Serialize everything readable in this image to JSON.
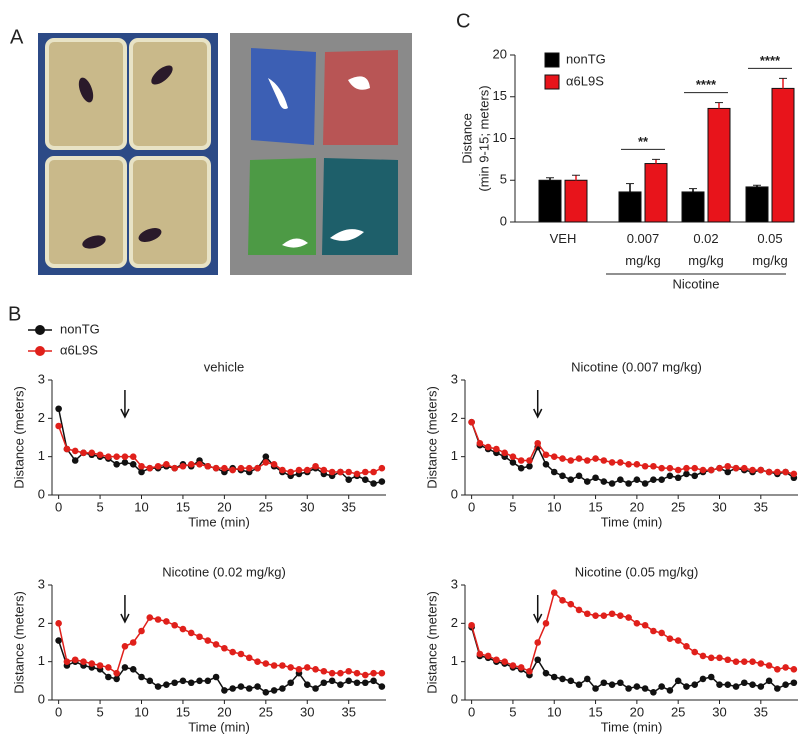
{
  "panel_labels": [
    "A",
    "B",
    "C"
  ],
  "legend_b": [
    {
      "name": "nonTG",
      "color": "#111111"
    },
    {
      "name": "α6L9S",
      "color": "#e0201b"
    }
  ],
  "chart_data": [
    {
      "type": "bar",
      "y_label": [
        "Distance",
        "(min 9-15; meters)"
      ],
      "categories": [
        "VEH",
        "0.007 mg/kg",
        "0.02 mg/kg",
        "0.05 mg/kg"
      ],
      "group_label": "Nicotine",
      "significance": [
        null,
        "**",
        "****",
        "****"
      ],
      "series": [
        {
          "name": "nonTG",
          "color": "#000000",
          "values": [
            5,
            3.6,
            3.6,
            4.2
          ],
          "errors": [
            0.3,
            1.0,
            0.4,
            0.2
          ]
        },
        {
          "name": "α6L9S",
          "color": "#e8141b",
          "values": [
            5,
            7,
            13.6,
            16
          ],
          "errors": [
            0.6,
            0.5,
            0.7,
            1.2
          ]
        }
      ],
      "ylim": [
        0,
        20
      ],
      "yticks": [
        0,
        5,
        10,
        15,
        20
      ]
    },
    {
      "type": "line",
      "title": "vehicle",
      "x_label": "Time (min)",
      "y_label": "Distance (meters)",
      "arrow_at": 8,
      "xlim": [
        -0.8,
        39.5
      ],
      "xticks": [
        0,
        5,
        10,
        15,
        20,
        25,
        30,
        35
      ],
      "ylim": [
        0,
        3
      ],
      "yticks": [
        0,
        1,
        2,
        3
      ],
      "series": [
        {
          "values": [
            2.25,
            1.2,
            0.9,
            1.1,
            1.05,
            1.0,
            0.95,
            0.8,
            0.85,
            0.8,
            0.6,
            0.7,
            0.7,
            0.75,
            0.7,
            0.8,
            0.75,
            0.9,
            0.75,
            0.7,
            0.6,
            0.7,
            0.65,
            0.6,
            0.7,
            1.0,
            0.75,
            0.6,
            0.5,
            0.55,
            0.6,
            0.7,
            0.55,
            0.5,
            0.6,
            0.4,
            0.5,
            0.4,
            0.3,
            0.35
          ]
        },
        {
          "values": [
            1.8,
            1.2,
            1.15,
            1.1,
            1.1,
            1.05,
            1.0,
            1.0,
            1.0,
            1.0,
            0.75,
            0.7,
            0.75,
            0.8,
            0.7,
            0.75,
            0.8,
            0.8,
            0.75,
            0.7,
            0.7,
            0.65,
            0.7,
            0.7,
            0.7,
            0.85,
            0.8,
            0.65,
            0.6,
            0.65,
            0.65,
            0.75,
            0.65,
            0.6,
            0.6,
            0.6,
            0.55,
            0.6,
            0.6,
            0.7
          ]
        }
      ]
    },
    {
      "type": "line",
      "title": "Nicotine (0.007 mg/kg)",
      "x_label": "Time (min)",
      "y_label": "Distance (meters)",
      "arrow_at": 8,
      "xlim": [
        -0.8,
        39.5
      ],
      "xticks": [
        0,
        5,
        10,
        15,
        20,
        25,
        30,
        35
      ],
      "ylim": [
        0,
        3
      ],
      "yticks": [
        0,
        1,
        2,
        3
      ],
      "series": [
        {
          "values": [
            1.9,
            1.3,
            1.2,
            1.1,
            1.0,
            0.85,
            0.7,
            0.75,
            1.25,
            0.8,
            0.6,
            0.5,
            0.4,
            0.5,
            0.35,
            0.45,
            0.35,
            0.3,
            0.4,
            0.3,
            0.4,
            0.3,
            0.4,
            0.4,
            0.5,
            0.45,
            0.55,
            0.5,
            0.6,
            0.65,
            0.7,
            0.6,
            0.7,
            0.65,
            0.6,
            0.65,
            0.6,
            0.55,
            0.6,
            0.45
          ]
        },
        {
          "values": [
            1.9,
            1.35,
            1.25,
            1.2,
            1.1,
            1.0,
            0.9,
            0.9,
            1.35,
            1.05,
            1.0,
            0.95,
            0.9,
            0.95,
            0.9,
            0.95,
            0.9,
            0.85,
            0.85,
            0.8,
            0.8,
            0.75,
            0.75,
            0.7,
            0.7,
            0.65,
            0.7,
            0.7,
            0.65,
            0.65,
            0.7,
            0.75,
            0.7,
            0.7,
            0.65,
            0.65,
            0.6,
            0.6,
            0.6,
            0.55
          ]
        }
      ]
    },
    {
      "type": "line",
      "title": "Nicotine (0.02 mg/kg)",
      "x_label": "Time (min)",
      "y_label": "Distance (meters)",
      "arrow_at": 8,
      "xlim": [
        -0.8,
        39.5
      ],
      "xticks": [
        0,
        5,
        10,
        15,
        20,
        25,
        30,
        35
      ],
      "ylim": [
        0,
        3
      ],
      "yticks": [
        0,
        1,
        2,
        3
      ],
      "series": [
        {
          "values": [
            1.55,
            0.9,
            1.0,
            0.9,
            0.85,
            0.8,
            0.6,
            0.55,
            0.85,
            0.8,
            0.6,
            0.5,
            0.35,
            0.4,
            0.45,
            0.5,
            0.45,
            0.5,
            0.5,
            0.6,
            0.25,
            0.3,
            0.35,
            0.3,
            0.35,
            0.2,
            0.25,
            0.3,
            0.45,
            0.7,
            0.4,
            0.3,
            0.45,
            0.5,
            0.4,
            0.5,
            0.45,
            0.45,
            0.5,
            0.35
          ]
        },
        {
          "values": [
            2.0,
            1.0,
            1.05,
            1.0,
            0.95,
            0.9,
            0.85,
            0.7,
            1.4,
            1.5,
            1.8,
            2.15,
            2.1,
            2.05,
            1.95,
            1.85,
            1.75,
            1.65,
            1.55,
            1.45,
            1.35,
            1.25,
            1.2,
            1.1,
            1.0,
            0.95,
            0.9,
            0.9,
            0.85,
            0.8,
            0.85,
            0.8,
            0.75,
            0.7,
            0.7,
            0.75,
            0.7,
            0.65,
            0.7,
            0.7
          ]
        }
      ]
    },
    {
      "type": "line",
      "title": "Nicotine (0.05 mg/kg)",
      "x_label": "Time (min)",
      "y_label": "Distance (meters)",
      "arrow_at": 8,
      "xlim": [
        -0.8,
        39.5
      ],
      "xticks": [
        0,
        5,
        10,
        15,
        20,
        25,
        30,
        35
      ],
      "ylim": [
        0,
        3
      ],
      "yticks": [
        0,
        1,
        2,
        3
      ],
      "series": [
        {
          "values": [
            1.9,
            1.15,
            1.1,
            1.0,
            0.95,
            0.85,
            0.8,
            0.65,
            1.05,
            0.7,
            0.6,
            0.55,
            0.5,
            0.4,
            0.55,
            0.3,
            0.45,
            0.4,
            0.45,
            0.3,
            0.35,
            0.3,
            0.2,
            0.35,
            0.25,
            0.5,
            0.35,
            0.4,
            0.55,
            0.6,
            0.4,
            0.4,
            0.35,
            0.45,
            0.4,
            0.35,
            0.5,
            0.3,
            0.4,
            0.45
          ]
        },
        {
          "values": [
            1.95,
            1.2,
            1.15,
            1.05,
            1.0,
            0.9,
            0.85,
            0.75,
            1.5,
            2.0,
            2.8,
            2.6,
            2.5,
            2.35,
            2.25,
            2.2,
            2.2,
            2.25,
            2.2,
            2.15,
            2.0,
            1.95,
            1.8,
            1.75,
            1.6,
            1.55,
            1.4,
            1.25,
            1.15,
            1.1,
            1.1,
            1.05,
            1.0,
            1.0,
            1.0,
            0.95,
            0.9,
            0.8,
            0.85,
            0.8
          ]
        }
      ]
    }
  ]
}
